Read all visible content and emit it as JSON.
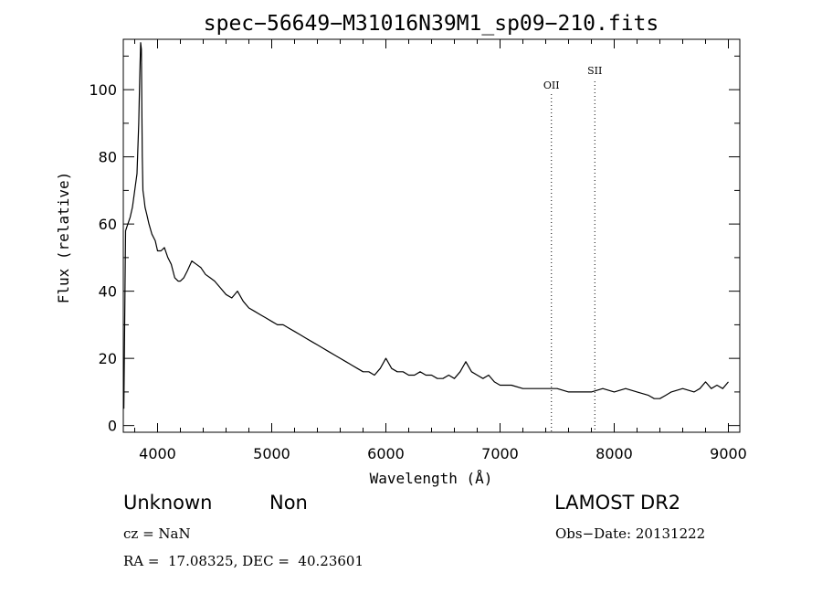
{
  "chart_data": {
    "type": "line",
    "title": "spec−56649−M31016N39M1_sp09−210.fits",
    "xlabel": "Wavelength (Å)",
    "ylabel": "Flux (relative)",
    "xlim": [
      3700,
      9100
    ],
    "ylim": [
      -2,
      115
    ],
    "xticks": [
      4000,
      5000,
      6000,
      7000,
      8000,
      9000
    ],
    "xtick_labels": [
      "4000",
      "5000",
      "6000",
      "7000",
      "8000",
      "9000"
    ],
    "yticks": [
      0,
      20,
      40,
      60,
      80,
      100
    ],
    "ytick_labels": [
      "0",
      "20",
      "40",
      "60",
      "80",
      "100"
    ],
    "grid": false,
    "lines": [
      {
        "label": "OII",
        "x": 7450,
        "style": "dotted"
      },
      {
        "label": "SII",
        "x": 7830,
        "style": "dotted"
      }
    ],
    "series": [
      {
        "x": [
          3705,
          3720,
          3740,
          3760,
          3780,
          3800,
          3820,
          3835,
          3845,
          3852,
          3858,
          3862,
          3866,
          3872,
          3880,
          3890,
          3905,
          3925,
          3950,
          3980,
          4000,
          4030,
          4060,
          4090,
          4120,
          4150,
          4180,
          4200,
          4230,
          4260,
          4300,
          4340,
          4380,
          4420,
          4460,
          4500,
          4550,
          4600,
          4650,
          4700,
          4750,
          4800,
          4850,
          4900,
          4950,
          5000,
          5050,
          5100,
          5150,
          5200,
          5250,
          5300,
          5350,
          5400,
          5450,
          5500,
          5550,
          5600,
          5650,
          5700,
          5750,
          5800,
          5850,
          5900,
          5950,
          6000,
          6050,
          6100,
          6150,
          6200,
          6250,
          6300,
          6350,
          6400,
          6450,
          6500,
          6550,
          6600,
          6650,
          6700,
          6750,
          6800,
          6850,
          6900,
          6950,
          7000,
          7100,
          7200,
          7300,
          7400,
          7500,
          7600,
          7700,
          7800,
          7900,
          8000,
          8100,
          8200,
          8300,
          8350,
          8400,
          8450,
          8500,
          8600,
          8700,
          8750,
          8800,
          8850,
          8900,
          8950,
          9000
        ],
        "y": [
          5,
          58,
          60,
          62,
          65,
          70,
          75,
          90,
          105,
          114,
          112,
          95,
          80,
          70,
          68,
          65,
          63,
          60,
          57,
          55,
          52,
          52,
          53,
          50,
          48,
          44,
          43,
          43,
          44,
          46,
          49,
          48,
          47,
          45,
          44,
          43,
          41,
          39,
          38,
          40,
          37,
          35,
          34,
          33,
          32,
          31,
          30,
          30,
          29,
          28,
          27,
          26,
          25,
          24,
          23,
          22,
          21,
          20,
          19,
          18,
          17,
          16,
          16,
          15,
          17,
          20,
          17,
          16,
          16,
          15,
          15,
          16,
          15,
          15,
          14,
          14,
          15,
          14,
          16,
          19,
          16,
          15,
          14,
          15,
          13,
          12,
          12,
          11,
          11,
          11,
          11,
          10,
          10,
          10,
          11,
          10,
          11,
          10,
          9,
          8,
          8,
          9,
          10,
          11,
          10,
          11,
          13,
          11,
          12,
          11,
          13
        ]
      }
    ]
  },
  "info": {
    "class_label": "Unknown",
    "subclass_label": "Non",
    "survey_label": "LAMOST DR2",
    "cz_text": "cz = NaN",
    "obs_date_text": "Obs−Date: 20131222",
    "coords_text": "RA =  17.08325, DEC =  40.23601"
  }
}
